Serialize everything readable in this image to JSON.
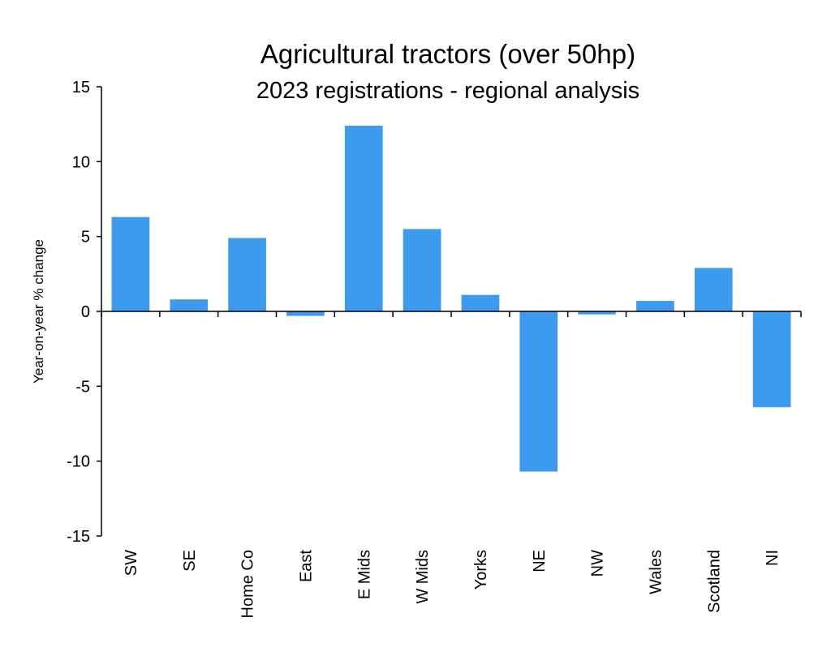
{
  "chart_data": {
    "type": "bar",
    "title": "Agricultural tractors (over 50hp)",
    "subtitle": "2023 registrations - regional analysis",
    "xlabel": "",
    "ylabel": "Year-on-year  % change",
    "ylim": [
      -15,
      15
    ],
    "yticks": [
      15,
      10,
      5,
      0,
      -5,
      -10,
      -15
    ],
    "grid": false,
    "bar_color": "#3d9bef",
    "categories": [
      "SW",
      "SE",
      "Home Co",
      "East",
      "E Mids",
      "W Mids",
      "Yorks",
      "NE",
      "NW",
      "Wales",
      "Scotland",
      "NI"
    ],
    "values": [
      6.3,
      0.8,
      4.9,
      -0.3,
      12.4,
      5.5,
      1.1,
      -10.7,
      -0.2,
      0.7,
      2.9,
      -6.4
    ]
  }
}
